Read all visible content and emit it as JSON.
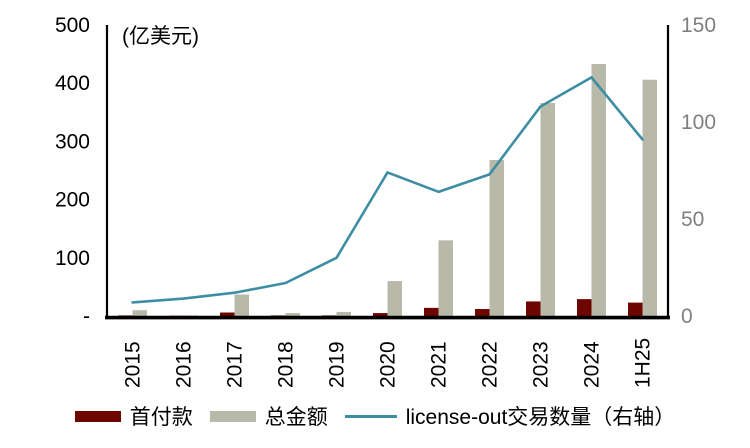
{
  "figure": {
    "unit_label": "(亿美元)"
  },
  "legend": [
    {
      "label": "首付款",
      "type": "bar",
      "color": "#6E0600"
    },
    {
      "label": "总金额",
      "type": "bar",
      "color": "#B8B9A8"
    },
    {
      "label": "license-out交易数量（右轴）",
      "type": "line",
      "color": "#3D8EA3"
    }
  ],
  "chart_data": {
    "type": "bar+line combo",
    "title": "",
    "unit_label": "(亿美元)",
    "categories": [
      "2015",
      "2016",
      "2017",
      "2018",
      "2019",
      "2020",
      "2021",
      "2022",
      "2023",
      "2024",
      "1H25"
    ],
    "series": [
      {
        "name": "首付款",
        "type": "bar",
        "axis": "left",
        "color": "#6E0600",
        "values": [
          1,
          0.5,
          6,
          1,
          1,
          5,
          14,
          12,
          25,
          29,
          23
        ]
      },
      {
        "name": "总金额",
        "type": "bar",
        "axis": "left",
        "color": "#B8B9A8",
        "values": [
          10,
          1,
          37,
          5,
          7,
          60,
          130,
          268,
          366,
          433,
          406
        ]
      },
      {
        "name": "license-out交易数量（右轴）",
        "type": "line",
        "axis": "right",
        "color": "#3D8EA3",
        "values": [
          7,
          9,
          12,
          17,
          30,
          74,
          64,
          73,
          108,
          123,
          91
        ]
      }
    ],
    "left_axis": {
      "unit_label": "(亿美元)",
      "min": 0,
      "max": 500,
      "tick_values": [
        500,
        400,
        300,
        200,
        100,
        0
      ],
      "tick_labels": [
        "500",
        "400",
        "300",
        "200",
        "100",
        "-"
      ],
      "text_color": "#000000"
    },
    "right_axis": {
      "min": 0,
      "max": 150,
      "tick_values": [
        150,
        100,
        50,
        0
      ],
      "tick_labels": [
        "150",
        "100",
        "50",
        "0"
      ],
      "text_color": "#7f7f7f"
    },
    "grid": false,
    "legend_position": "bottom-center",
    "x_label_rotation": -90
  }
}
